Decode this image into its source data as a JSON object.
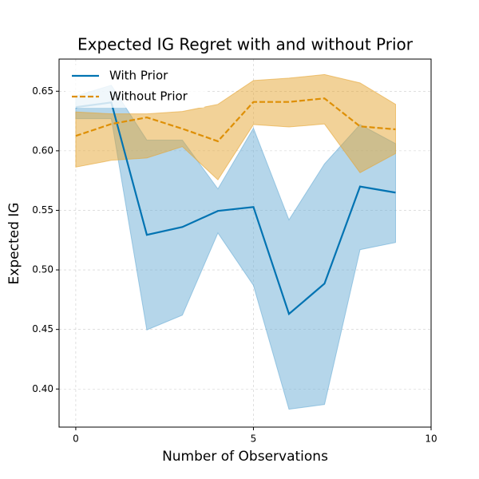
{
  "chart_data": {
    "type": "line",
    "title": "Expected IG Regret with and without Prior",
    "xlabel": "Number of Observations",
    "ylabel": "Expected IG",
    "x": [
      0,
      1,
      2,
      3,
      4,
      5,
      6,
      7,
      8,
      9
    ],
    "series": [
      {
        "name": "With Prior",
        "color": "#0173b2",
        "band_color": "#6baed6",
        "dash": false,
        "values": [
          0.6366,
          0.6406,
          0.5294,
          0.536,
          0.5495,
          0.5528,
          0.463,
          0.4885,
          0.57,
          0.5649
        ],
        "lower": [
          0.627,
          0.627,
          0.4496,
          0.462,
          0.531,
          0.487,
          0.383,
          0.387,
          0.517,
          0.523
        ],
        "upper": [
          0.646,
          0.655,
          0.609,
          0.609,
          0.568,
          0.619,
          0.542,
          0.589,
          0.622,
          0.606
        ]
      },
      {
        "name": "Without Prior",
        "color": "#de8f05",
        "band_color": "#e6a532",
        "dash": true,
        "values": [
          0.6125,
          0.6225,
          0.628,
          0.6185,
          0.608,
          0.641,
          0.641,
          0.644,
          0.6205,
          0.618
        ],
        "lower": [
          0.5863,
          0.592,
          0.594,
          0.6035,
          0.5756,
          0.622,
          0.62,
          0.6225,
          0.5816,
          0.5977
        ],
        "upper": [
          0.6326,
          0.631,
          0.631,
          0.633,
          0.639,
          0.659,
          0.661,
          0.664,
          0.657,
          0.639
        ]
      }
    ],
    "xlim": [
      -0.47,
      10
    ],
    "ylim": [
      0.368,
      0.677
    ],
    "xticks": [
      0,
      5,
      10
    ],
    "yticks": [
      {
        "value": 0.4,
        "label": "0.40"
      },
      0.45,
      {
        "value": 0.5,
        "label": "0.50"
      },
      0.55,
      {
        "value": 0.6,
        "label": "0.60"
      },
      0.65
    ],
    "grid": true,
    "legend": "upper-left"
  }
}
